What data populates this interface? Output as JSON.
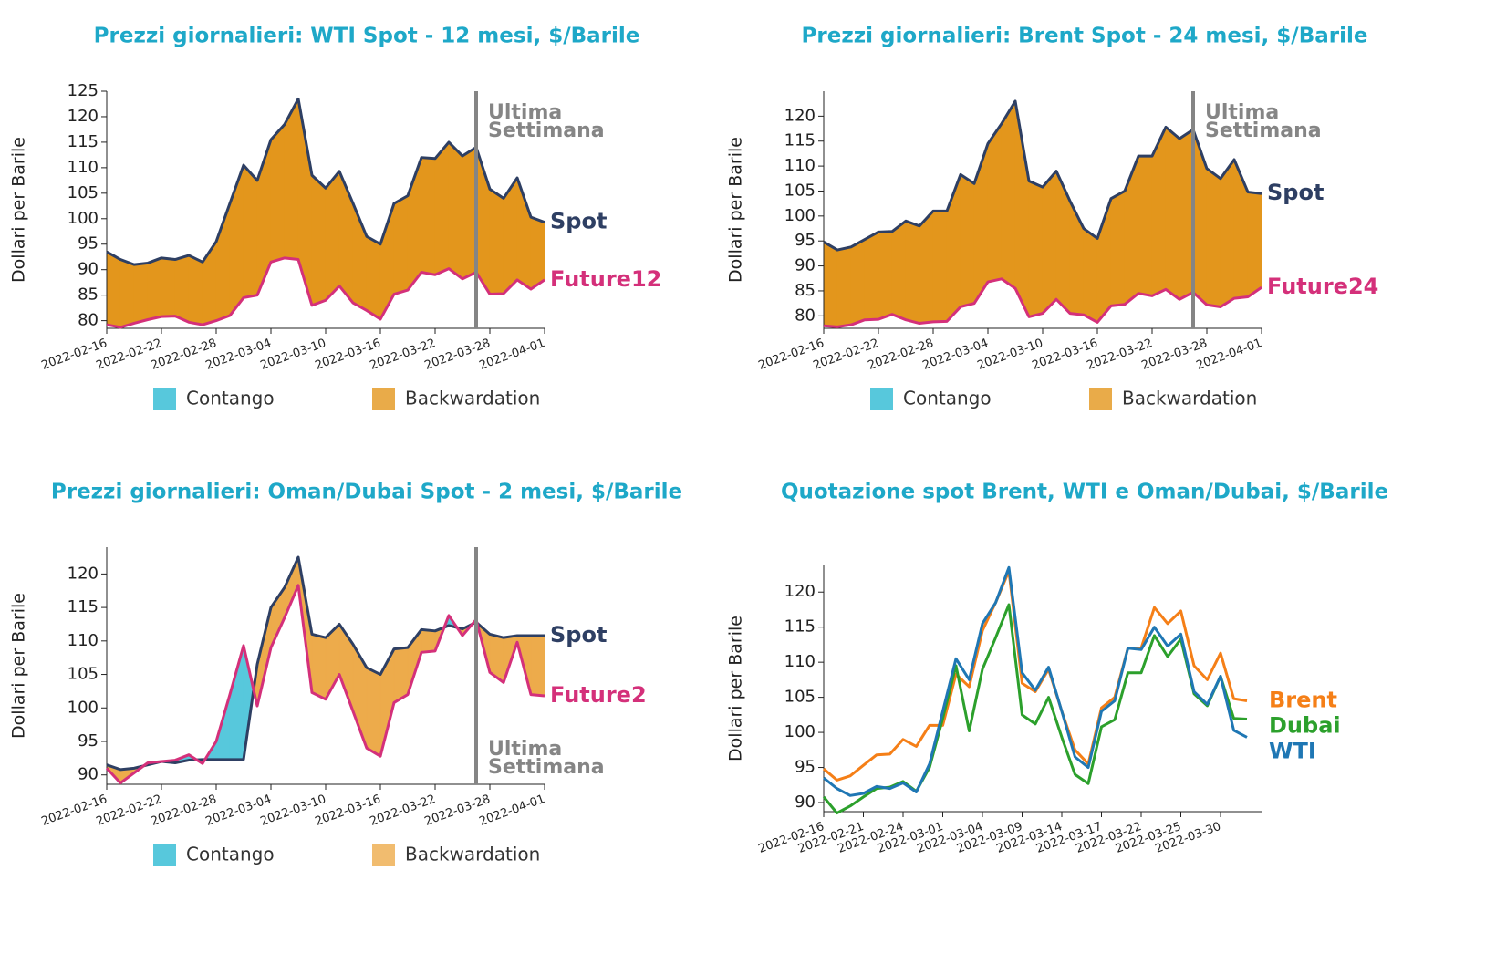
{
  "chart_data": [
    {
      "type": "area",
      "title": "Prezzi giornalieri: WTI Spot - 12 mesi, $/Barile",
      "ylabel": "Dollari per Barile",
      "categories": [
        "2022-02-16",
        null,
        null,
        null,
        "2022-02-22",
        null,
        null,
        null,
        "2022-02-28",
        null,
        null,
        null,
        "2022-03-04",
        null,
        null,
        null,
        "2022-03-10",
        null,
        null,
        null,
        "2022-03-16",
        null,
        null,
        null,
        "2022-03-22",
        null,
        null,
        null,
        "2022-03-28",
        null,
        null,
        null,
        "2022-04-01"
      ],
      "series": [
        {
          "name": "Spot",
          "color": "#2e3f63",
          "values": [
            93.5,
            92,
            91,
            91.3,
            92.3,
            92,
            92.8,
            91.5,
            95.5,
            103,
            110.5,
            107.5,
            115.5,
            118.5,
            123.5,
            108.5,
            106,
            109.3,
            103,
            96.5,
            95,
            103,
            104.5,
            112,
            111.8,
            115,
            112.3,
            114,
            105.8,
            104,
            108,
            100.3,
            99.3
          ]
        },
        {
          "name": "Future12",
          "color": "#d4307a",
          "values": [
            79.2,
            78.7,
            79.5,
            80.2,
            80.8,
            80.9,
            79.7,
            79.2,
            80,
            81,
            84.5,
            85,
            91.5,
            92.3,
            92,
            83,
            84,
            86.8,
            83.5,
            82,
            80.3,
            85.2,
            86,
            89.5,
            89,
            90.2,
            88.2,
            89.5,
            85.2,
            85.3,
            88,
            86.2,
            88
          ]
        }
      ],
      "ylim": [
        78.5,
        125
      ],
      "yticks": [
        80,
        85,
        90,
        95,
        100,
        105,
        110,
        115,
        120,
        125
      ],
      "legend": [
        {
          "name": "Contango",
          "color": "#57c8dc"
        },
        {
          "name": "Backwardation",
          "color": "#e3961c"
        }
      ],
      "vline": {
        "index": 27,
        "label": [
          "Ultima",
          "Settimana"
        ],
        "label_position": "top"
      }
    },
    {
      "type": "area",
      "title": "Prezzi giornalieri: Brent Spot - 24 mesi, $/Barile",
      "ylabel": "Dollari per Barile",
      "categories": [
        "2022-02-16",
        null,
        null,
        null,
        "2022-02-22",
        null,
        null,
        null,
        "2022-02-28",
        null,
        null,
        null,
        "2022-03-04",
        null,
        null,
        null,
        "2022-03-10",
        null,
        null,
        null,
        "2022-03-16",
        null,
        null,
        null,
        "2022-03-22",
        null,
        null,
        null,
        "2022-03-28",
        null,
        null,
        null,
        "2022-04-01"
      ],
      "series": [
        {
          "name": "Spot",
          "color": "#2e3f63",
          "values": [
            94.8,
            93.2,
            93.8,
            95.3,
            96.8,
            96.9,
            99,
            98,
            101,
            101,
            108.3,
            106.5,
            114.5,
            118.5,
            123,
            107,
            105.8,
            109,
            103,
            97.5,
            95.5,
            103.5,
            105,
            112,
            112,
            117.8,
            115.5,
            117.3,
            109.5,
            107.5,
            111.3,
            104.8,
            104.5
          ]
        },
        {
          "name": "Future24",
          "color": "#d4307a",
          "values": [
            78,
            77.8,
            78.2,
            79.2,
            79.3,
            80.3,
            79.2,
            78.5,
            78.8,
            78.9,
            81.8,
            82.5,
            86.8,
            87.4,
            85.5,
            79.8,
            80.5,
            83.3,
            80.5,
            80.2,
            78.7,
            82,
            82.3,
            84.5,
            84,
            85.3,
            83.3,
            84.7,
            82.2,
            81.8,
            83.5,
            83.8,
            85.7
          ]
        }
      ],
      "ylim": [
        77.5,
        125
      ],
      "yticks": [
        80,
        85,
        90,
        95,
        100,
        105,
        110,
        115,
        120
      ],
      "legend": [
        {
          "name": "Contango",
          "color": "#57c8dc"
        },
        {
          "name": "Backwardation",
          "color": "#e3961c"
        }
      ],
      "vline": {
        "index": 27,
        "label": [
          "Ultima",
          "Settimana"
        ],
        "label_position": "top"
      }
    },
    {
      "type": "area",
      "title": "Prezzi giornalieri: Oman/Dubai Spot - 2 mesi, $/Barile",
      "ylabel": "Dollari per Barile",
      "categories": [
        "2022-02-16",
        null,
        null,
        null,
        "2022-02-22",
        null,
        null,
        null,
        "2022-02-28",
        null,
        null,
        null,
        "2022-03-04",
        null,
        null,
        null,
        "2022-03-10",
        null,
        null,
        null,
        "2022-03-16",
        null,
        null,
        null,
        "2022-03-22",
        null,
        null,
        null,
        "2022-03-28",
        null,
        null,
        null,
        "2022-04-01"
      ],
      "series": [
        {
          "name": "Spot",
          "color": "#2e3f63",
          "values": [
            91.5,
            90.8,
            91,
            91.5,
            92,
            91.8,
            92.2,
            92.3,
            92.3,
            92.3,
            92.3,
            106.5,
            115,
            118,
            122.5,
            111,
            110.5,
            112.5,
            109.5,
            106,
            105,
            108.8,
            109,
            111.7,
            111.5,
            112.3,
            111.8,
            112.8,
            111,
            110.5,
            110.8,
            110.8,
            110.8
          ]
        },
        {
          "name": "Future2",
          "color": "#d4307a",
          "values": [
            91,
            88.8,
            90.3,
            91.8,
            92,
            92.2,
            93,
            91.7,
            95,
            102,
            109.3,
            100.3,
            109,
            113.5,
            118.3,
            102.3,
            101.3,
            105,
            99.5,
            94,
            92.8,
            100.8,
            102,
            108.3,
            108.5,
            113.8,
            110.8,
            113.2,
            105.3,
            103.8,
            109.8,
            102,
            101.8
          ]
        }
      ],
      "ylim": [
        88.6,
        124
      ],
      "yticks": [
        90,
        95,
        100,
        105,
        110,
        115,
        120
      ],
      "legend": [
        {
          "name": "Contango",
          "color": "#57c8dc"
        },
        {
          "name": "Backwardation",
          "color": "#edab4b"
        }
      ],
      "vline": {
        "index": 27,
        "label": [
          "Ultima",
          "Settimana"
        ],
        "label_position": "bottom"
      }
    },
    {
      "type": "line",
      "title": "Quotazione spot Brent, WTI e Oman/Dubai, $/Barile",
      "ylabel": "Dollari per Barile",
      "categories": [
        "2022-02-16",
        null,
        null,
        "2022-02-21",
        null,
        null,
        "2022-02-24",
        null,
        null,
        "2022-03-01",
        null,
        null,
        "2022-03-04",
        null,
        null,
        "2022-03-09",
        null,
        null,
        "2022-03-14",
        null,
        null,
        "2022-03-17",
        null,
        null,
        "2022-03-22",
        null,
        null,
        "2022-03-25",
        null,
        null,
        "2022-03-30",
        null,
        null
      ],
      "series": [
        {
          "name": "Brent",
          "color": "#f57f17",
          "values": [
            94.8,
            93.2,
            93.8,
            95.3,
            96.8,
            96.9,
            99,
            98,
            101,
            101,
            108.3,
            106.5,
            114.5,
            118.5,
            123,
            107,
            105.8,
            109,
            103,
            97.5,
            95.5,
            103.5,
            105,
            112,
            112,
            117.8,
            115.5,
            117.3,
            109.5,
            107.5,
            111.3,
            104.8,
            104.5
          ]
        },
        {
          "name": "Dubai",
          "color": "#2ca02c",
          "values": [
            90.8,
            88.5,
            89.5,
            90.8,
            92,
            92.2,
            93,
            91.6,
            95,
            102,
            109.5,
            100.2,
            109,
            113.5,
            118.2,
            102.5,
            101.2,
            105,
            99.3,
            94,
            92.7,
            100.8,
            101.8,
            108.5,
            108.5,
            113.8,
            110.8,
            113.3,
            105.5,
            103.8,
            108,
            102,
            101.9
          ]
        },
        {
          "name": "WTI",
          "color": "#1f77b4",
          "values": [
            93.5,
            92,
            91,
            91.3,
            92.3,
            92,
            92.8,
            91.5,
            95.5,
            103,
            110.5,
            107.5,
            115.5,
            118.5,
            123.5,
            108.5,
            106,
            109.3,
            103,
            96.5,
            95,
            103,
            104.5,
            112,
            111.8,
            115,
            112.3,
            114,
            105.8,
            104,
            108,
            100.3,
            99.3
          ]
        }
      ],
      "ylim": [
        88.7,
        123.8
      ],
      "yticks": [
        90,
        95,
        100,
        105,
        110,
        115,
        120
      ]
    }
  ]
}
